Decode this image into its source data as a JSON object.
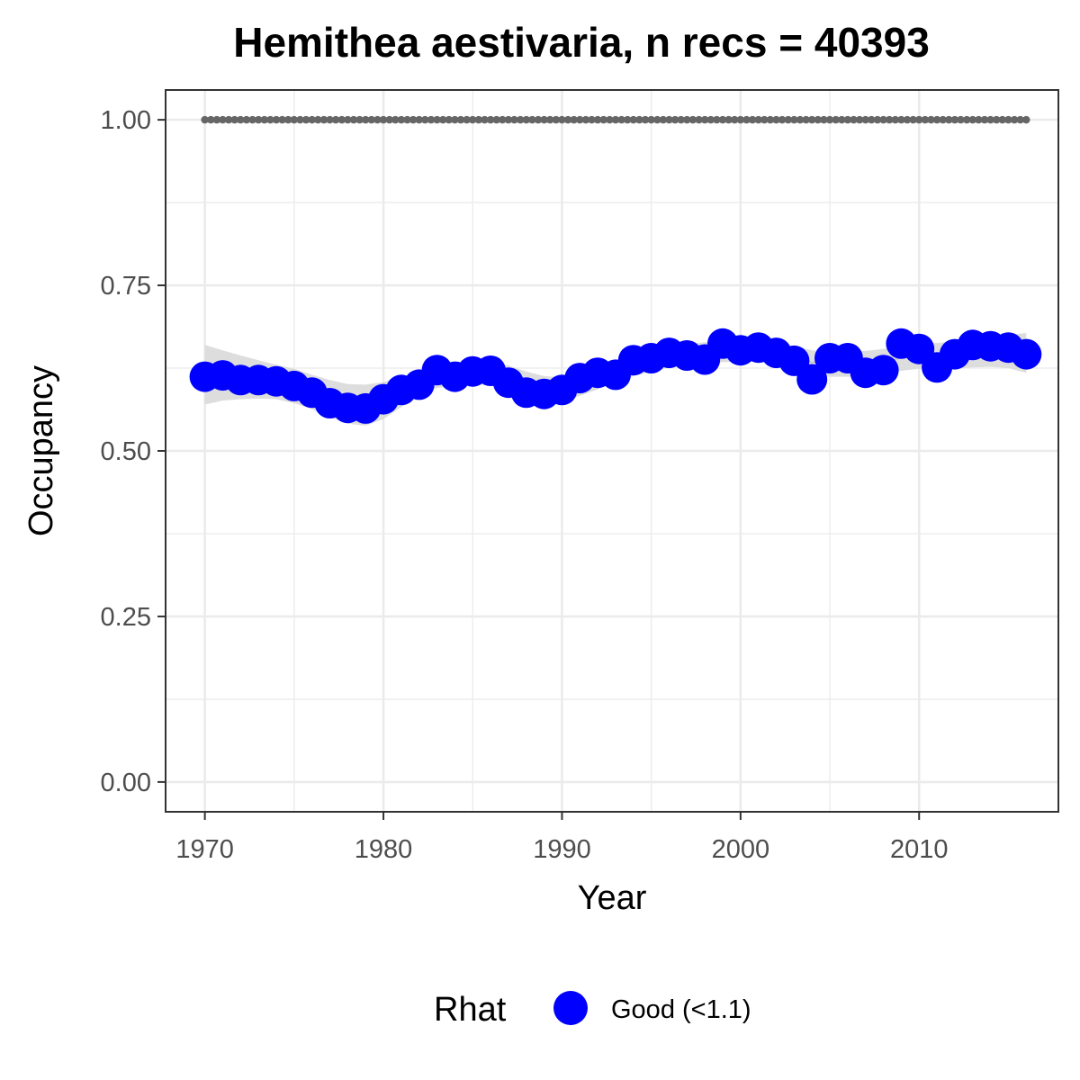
{
  "chart_data": {
    "type": "line",
    "title": "Hemithea aestivaria, n recs = 40393",
    "xlabel": "Year",
    "ylabel": "Occupancy",
    "xlim": [
      1967.8,
      2017.8
    ],
    "ylim": [
      -0.045,
      1.045
    ],
    "x_ticks": [
      1970,
      1980,
      1990,
      2000,
      2010
    ],
    "x_tick_labels": [
      "1970",
      "1980",
      "1990",
      "2000",
      "2010"
    ],
    "y_ticks": [
      0,
      0.25,
      0.5,
      0.75,
      1.0
    ],
    "y_tick_labels": [
      "0.00",
      "0.25",
      "0.50",
      "0.75",
      "1.00"
    ],
    "grid": true,
    "x": [
      1970,
      1971,
      1972,
      1973,
      1974,
      1975,
      1976,
      1977,
      1978,
      1979,
      1980,
      1981,
      1982,
      1983,
      1984,
      1985,
      1986,
      1987,
      1988,
      1989,
      1990,
      1991,
      1992,
      1993,
      1994,
      1995,
      1996,
      1997,
      1998,
      1999,
      2000,
      2001,
      2002,
      2003,
      2004,
      2005,
      2006,
      2007,
      2008,
      2009,
      2010,
      2011,
      2012,
      2013,
      2014,
      2015,
      2016
    ],
    "series": [
      {
        "name": "Good (<1.1)",
        "type": "points",
        "color": "#0000ff",
        "values": [
          0.612,
          0.614,
          0.607,
          0.607,
          0.605,
          0.598,
          0.588,
          0.572,
          0.565,
          0.564,
          0.578,
          0.592,
          0.6,
          0.622,
          0.612,
          0.62,
          0.621,
          0.603,
          0.588,
          0.586,
          0.592,
          0.61,
          0.618,
          0.615,
          0.637,
          0.64,
          0.648,
          0.644,
          0.638,
          0.662,
          0.652,
          0.656,
          0.648,
          0.636,
          0.608,
          0.64,
          0.64,
          0.618,
          0.622,
          0.662,
          0.654,
          0.626,
          0.646,
          0.66,
          0.658,
          0.656,
          0.646
        ]
      },
      {
        "name": "",
        "type": "ribbon",
        "color": "#d9d9d9",
        "smooth": [
          0.615,
          0.614,
          0.611,
          0.608,
          0.604,
          0.598,
          0.589,
          0.579,
          0.571,
          0.569,
          0.576,
          0.589,
          0.602,
          0.611,
          0.615,
          0.617,
          0.616,
          0.61,
          0.6,
          0.593,
          0.593,
          0.6,
          0.61,
          0.62,
          0.629,
          0.636,
          0.642,
          0.645,
          0.648,
          0.65,
          0.651,
          0.65,
          0.647,
          0.641,
          0.634,
          0.631,
          0.631,
          0.632,
          0.635,
          0.64,
          0.643,
          0.643,
          0.645,
          0.648,
          0.65,
          0.65,
          0.648
        ],
        "lower": [
          0.57,
          0.576,
          0.578,
          0.579,
          0.578,
          0.572,
          0.563,
          0.551,
          0.541,
          0.538,
          0.548,
          0.566,
          0.585,
          0.595,
          0.599,
          0.601,
          0.599,
          0.591,
          0.58,
          0.573,
          0.575,
          0.583,
          0.593,
          0.604,
          0.613,
          0.62,
          0.626,
          0.629,
          0.632,
          0.634,
          0.635,
          0.634,
          0.631,
          0.624,
          0.616,
          0.612,
          0.612,
          0.613,
          0.616,
          0.621,
          0.624,
          0.623,
          0.624,
          0.626,
          0.627,
          0.625,
          0.618
        ],
        "upper": [
          0.66,
          0.652,
          0.644,
          0.637,
          0.63,
          0.624,
          0.615,
          0.607,
          0.601,
          0.6,
          0.604,
          0.612,
          0.619,
          0.627,
          0.631,
          0.633,
          0.633,
          0.629,
          0.62,
          0.613,
          0.611,
          0.617,
          0.627,
          0.636,
          0.645,
          0.652,
          0.658,
          0.661,
          0.664,
          0.666,
          0.667,
          0.666,
          0.663,
          0.658,
          0.652,
          0.65,
          0.65,
          0.651,
          0.654,
          0.659,
          0.662,
          0.663,
          0.666,
          0.67,
          0.673,
          0.675,
          0.678
        ]
      },
      {
        "name": "",
        "type": "dotted_line",
        "color": "#666666",
        "values": [
          1,
          1,
          1,
          1,
          1,
          1,
          1,
          1,
          1,
          1,
          1,
          1,
          1,
          1,
          1,
          1,
          1,
          1,
          1,
          1,
          1,
          1,
          1,
          1,
          1,
          1,
          1,
          1,
          1,
          1,
          1,
          1,
          1,
          1,
          1,
          1,
          1,
          1,
          1,
          1,
          1,
          1,
          1,
          1,
          1,
          1,
          1
        ]
      }
    ],
    "legend": {
      "position": "bottom",
      "title": "Rhat",
      "entries": [
        {
          "label": "Good (<1.1)",
          "color": "#0000ff"
        }
      ]
    }
  }
}
